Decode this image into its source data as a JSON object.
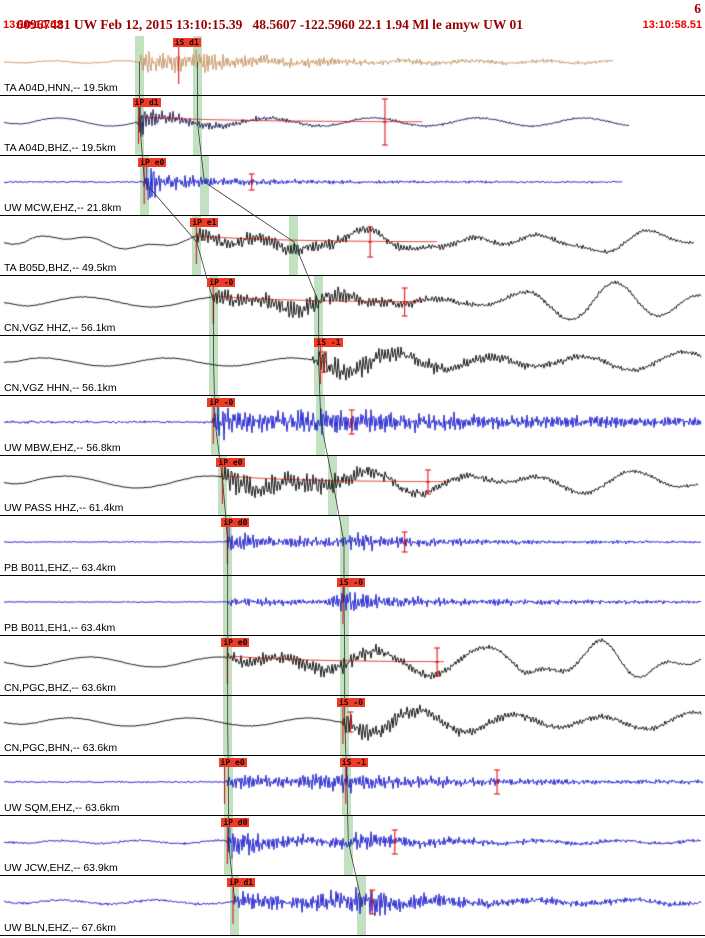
{
  "header": {
    "event_line": "60967481 UW Feb 12, 2015 13:10:15.39   48.5607 -122.5960 22.1 1.94 Ml le amyw UW 01",
    "right_count": "6",
    "start_time": "13:10:10.02",
    "end_time": "13:10:58.51"
  },
  "colors": {
    "header_text": "#990000",
    "time_text": "#ee0000",
    "phase_band": "rgba(100,180,100,0.40)",
    "pick_flag_bg": "#ee3b28",
    "pick_flag_fg": "#1a0000",
    "marker_red": "#dd0000",
    "traveltime_curve": "#333333",
    "trace_tan": "#c69463",
    "trace_navy": "#14144e",
    "trace_blue": "#1414cc",
    "trace_black": "#000000"
  },
  "traces": [
    {
      "label": "TA A04D,HNN,-- 19.5km",
      "color": "#c69463",
      "start": 0.006,
      "end": 0.87,
      "seed": 11,
      "noise": 0.5,
      "freq": 2.3,
      "lf": [
        {
          "amp": 1.2,
          "period": 70,
          "phase": 0
        }
      ],
      "segments": [
        [
          0,
          0.4
        ],
        [
          0.198,
          0.4
        ],
        [
          0.203,
          13
        ],
        [
          0.225,
          8
        ],
        [
          0.278,
          11
        ],
        [
          0.31,
          7
        ],
        [
          0.4,
          4
        ],
        [
          0.55,
          2.5
        ],
        [
          0.87,
          1.2
        ]
      ],
      "spikes": [],
      "picks": [
        {
          "label": "iS d1",
          "x": 0.245
        }
      ],
      "bands": [
        0.198,
        0.28
      ],
      "markers": [],
      "decay": null
    },
    {
      "label": "TA A04D,BHZ,-- 19.5km",
      "color": "#14144e",
      "start": 0.006,
      "end": 0.892,
      "seed": 22,
      "noise": 0.3,
      "freq": 2.2,
      "lf": [
        {
          "amp": 4,
          "period": 105,
          "phase": 1.2
        }
      ],
      "segments": [
        [
          0,
          0.2
        ],
        [
          0.194,
          0.2
        ],
        [
          0.199,
          14
        ],
        [
          0.23,
          6
        ],
        [
          0.3,
          3
        ],
        [
          0.4,
          1.6
        ],
        [
          0.6,
          1
        ],
        [
          0.89,
          0.7
        ]
      ],
      "spikes": [
        {
          "x": 0.199,
          "a": -21
        },
        {
          "x": 0.201,
          "a": 15
        }
      ],
      "picks": [
        {
          "label": "iP d1",
          "x": 0.188
        }
      ],
      "bands": [
        0.198,
        0.28
      ],
      "markers": [
        {
          "x": 0.546,
          "h": 23
        }
      ],
      "decay": {
        "from": 0.199,
        "to": 0.6,
        "h0": 5
      }
    },
    {
      "label": "UW MCW,EHZ,-- 21.8km",
      "color": "#1414cc",
      "start": 0.006,
      "end": 0.882,
      "seed": 33,
      "noise": 0.5,
      "freq": 2.4,
      "lf": [],
      "segments": [
        [
          0,
          0.5
        ],
        [
          0.203,
          0.5
        ],
        [
          0.208,
          20
        ],
        [
          0.23,
          7
        ],
        [
          0.3,
          4
        ],
        [
          0.42,
          2
        ],
        [
          0.6,
          1
        ],
        [
          0.88,
          0.7
        ]
      ],
      "spikes": [
        {
          "x": 0.208,
          "a": -23
        },
        {
          "x": 0.21,
          "a": 18
        }
      ],
      "picks": [
        {
          "label": "iP e0",
          "x": 0.196
        }
      ],
      "bands": [
        0.205,
        0.29
      ],
      "markers": [
        {
          "x": 0.357,
          "h": 8
        }
      ],
      "decay": null
    },
    {
      "label": "TA B05D,BHZ,-- 49.5km",
      "color": "#000000",
      "start": 0.006,
      "end": 0.985,
      "seed": 44,
      "noise": 0.3,
      "freq": 2.0,
      "lf": [
        {
          "amp": 5.5,
          "period": 150,
          "phase": 2.1
        },
        {
          "amp": 2.5,
          "period": 55,
          "phase": 0.4
        },
        {
          "from": 0.28,
          "amp": 5,
          "period": 95,
          "phase": 0
        }
      ],
      "segments": [
        [
          0,
          0.3
        ],
        [
          0.276,
          0.3
        ],
        [
          0.281,
          8
        ],
        [
          0.32,
          5
        ],
        [
          0.41,
          7
        ],
        [
          0.48,
          4.5
        ],
        [
          0.6,
          2.5
        ],
        [
          0.985,
          1.2
        ]
      ],
      "spikes": [],
      "picks": [
        {
          "label": "iP e1",
          "x": 0.27
        }
      ],
      "bands": [
        0.279,
        0.417
      ],
      "markers": [
        {
          "x": 0.525,
          "h": 15
        }
      ],
      "decay": {
        "from": 0.282,
        "to": 0.62,
        "h0": 6
      }
    },
    {
      "label": "CN,VGZ HHZ,-- 56.1km",
      "color": "#000000",
      "start": 0.006,
      "end": 0.995,
      "seed": 55,
      "noise": 0.3,
      "freq": 2.0,
      "lf": [
        {
          "amp": 5,
          "period": 135,
          "phase": 0.8
        },
        {
          "from": 0.55,
          "amp": 11,
          "period": 90,
          "phase": 1.5
        },
        {
          "from": 0.3,
          "amp": 4,
          "period": 70,
          "phase": 0
        }
      ],
      "segments": [
        [
          0,
          0.3
        ],
        [
          0.3,
          0.3
        ],
        [
          0.305,
          10
        ],
        [
          0.35,
          6
        ],
        [
          0.45,
          8
        ],
        [
          0.52,
          5
        ],
        [
          0.62,
          2.5
        ],
        [
          0.995,
          1
        ]
      ],
      "spikes": [],
      "picks": [
        {
          "label": "iP -0",
          "x": 0.294
        }
      ],
      "bands": [
        0.303,
        0.452
      ],
      "markers": [
        {
          "x": 0.574,
          "h": 14
        }
      ],
      "decay": {
        "from": 0.306,
        "to": 0.6,
        "h0": 6
      }
    },
    {
      "label": "CN,VGZ HHN,-- 56.1km",
      "color": "#000000",
      "start": 0.006,
      "end": 0.995,
      "seed": 66,
      "noise": 0.3,
      "freq": 2.0,
      "lf": [
        {
          "amp": 4,
          "period": 125,
          "phase": 2.6
        },
        {
          "from": 0.452,
          "amp": 8,
          "period": 100,
          "phase": 0.3
        }
      ],
      "segments": [
        [
          0,
          0.3
        ],
        [
          0.44,
          0.35
        ],
        [
          0.455,
          12
        ],
        [
          0.52,
          8
        ],
        [
          0.62,
          5
        ],
        [
          0.78,
          3
        ],
        [
          0.995,
          1.8
        ]
      ],
      "spikes": [],
      "picks": [
        {
          "label": "iS -1",
          "x": 0.446
        }
      ],
      "bands": [
        0.303,
        0.452
      ],
      "markers": [
        {
          "x": 0.46,
          "h": 10
        }
      ],
      "decay": null
    },
    {
      "label": "UW MBW,EHZ,-- 56.8km",
      "color": "#1414cc",
      "start": 0.006,
      "end": 0.995,
      "seed": 77,
      "noise": 0.8,
      "freq": 2.5,
      "lf": [],
      "segments": [
        [
          0,
          0.8
        ],
        [
          0.3,
          0.8
        ],
        [
          0.305,
          13
        ],
        [
          0.37,
          9
        ],
        [
          0.455,
          11
        ],
        [
          0.55,
          8
        ],
        [
          0.7,
          6
        ],
        [
          0.995,
          4
        ]
      ],
      "spikes": [],
      "picks": [
        {
          "label": "iP -0",
          "x": 0.294
        }
      ],
      "bands": [
        0.305,
        0.455
      ],
      "markers": [
        {
          "x": 0.499,
          "h": 12
        }
      ],
      "decay": null
    },
    {
      "label": "UW PASS HHZ,-- 61.4km",
      "color": "#000000",
      "start": 0.006,
      "end": 0.99,
      "seed": 88,
      "noise": 0.3,
      "freq": 2.0,
      "lf": [
        {
          "amp": 6,
          "period": 145,
          "phase": 1.9
        },
        {
          "from": 0.32,
          "amp": 6,
          "period": 85,
          "phase": 0
        }
      ],
      "segments": [
        [
          0,
          0.3
        ],
        [
          0.313,
          0.3
        ],
        [
          0.318,
          11
        ],
        [
          0.37,
          8
        ],
        [
          0.46,
          8
        ],
        [
          0.55,
          5
        ],
        [
          0.7,
          2.5
        ],
        [
          0.99,
          1.2
        ]
      ],
      "spikes": [],
      "picks": [
        {
          "label": "iP e0",
          "x": 0.307
        }
      ],
      "bands": [
        0.316,
        0.472
      ],
      "markers": [
        {
          "x": 0.607,
          "h": 12
        }
      ],
      "decay": {
        "from": 0.32,
        "to": 0.64,
        "h0": 6
      }
    },
    {
      "label": "PB B011,EHZ,-- 63.4km",
      "color": "#1414cc",
      "start": 0.006,
      "end": 0.995,
      "seed": 99,
      "noise": 0.4,
      "freq": 2.4,
      "lf": [],
      "segments": [
        [
          0,
          0.4
        ],
        [
          0.32,
          0.4
        ],
        [
          0.325,
          11
        ],
        [
          0.37,
          5
        ],
        [
          0.48,
          4
        ],
        [
          0.492,
          9
        ],
        [
          0.55,
          5
        ],
        [
          0.7,
          2
        ],
        [
          0.995,
          1
        ]
      ],
      "spikes": [
        {
          "x": 0.325,
          "a": -18
        }
      ],
      "picks": [
        {
          "label": "iP d0",
          "x": 0.314
        }
      ],
      "bands": [
        0.323,
        0.488
      ],
      "markers": [
        {
          "x": 0.574,
          "h": 10
        }
      ],
      "decay": null
    },
    {
      "label": "PB B011,EH1,-- 63.4km",
      "color": "#1414cc",
      "start": 0.006,
      "end": 0.995,
      "seed": 110,
      "noise": 0.35,
      "freq": 2.4,
      "lf": [],
      "segments": [
        [
          0,
          0.35
        ],
        [
          0.322,
          0.35
        ],
        [
          0.327,
          3.5
        ],
        [
          0.46,
          2.5
        ],
        [
          0.487,
          11
        ],
        [
          0.53,
          6
        ],
        [
          0.65,
          3
        ],
        [
          0.995,
          1.2
        ]
      ],
      "spikes": [
        {
          "x": 0.488,
          "a": -16
        }
      ],
      "picks": [
        {
          "label": "iS -0",
          "x": 0.478
        }
      ],
      "bands": [
        0.323,
        0.488
      ],
      "markers": [],
      "decay": null
    },
    {
      "label": "CN,PGC,BHZ,-- 63.6km",
      "color": "#000000",
      "start": 0.006,
      "end": 0.995,
      "seed": 121,
      "noise": 0.3,
      "freq": 2.0,
      "lf": [
        {
          "amp": 5,
          "period": 130,
          "phase": 0.4
        },
        {
          "from": 0.33,
          "amp": 10,
          "period": 105,
          "phase": 2.0
        },
        {
          "from": 0.72,
          "amp": 8,
          "period": 60,
          "phase": 1.0
        }
      ],
      "segments": [
        [
          0,
          0.3
        ],
        [
          0.32,
          0.3
        ],
        [
          0.325,
          8
        ],
        [
          0.37,
          5
        ],
        [
          0.49,
          7
        ],
        [
          0.56,
          4
        ],
        [
          0.68,
          2
        ],
        [
          0.995,
          1
        ]
      ],
      "spikes": [],
      "picks": [
        {
          "label": "iP e0",
          "x": 0.314
        }
      ],
      "bands": [
        0.323,
        0.489
      ],
      "markers": [
        {
          "x": 0.62,
          "h": 14
        }
      ],
      "decay": {
        "from": 0.326,
        "to": 0.63,
        "h0": 6
      }
    },
    {
      "label": "CN,PGC,BHN,-- 63.6km",
      "color": "#000000",
      "start": 0.006,
      "end": 0.995,
      "seed": 132,
      "noise": 0.3,
      "freq": 2.0,
      "lf": [
        {
          "amp": 4,
          "period": 120,
          "phase": 1.1
        },
        {
          "from": 0.49,
          "amp": 9,
          "period": 95,
          "phase": 0.2
        }
      ],
      "segments": [
        [
          0,
          0.3
        ],
        [
          0.482,
          0.35
        ],
        [
          0.49,
          10
        ],
        [
          0.56,
          6
        ],
        [
          0.7,
          3
        ],
        [
          0.995,
          1.6
        ]
      ],
      "spikes": [],
      "picks": [
        {
          "label": "iS -0",
          "x": 0.478
        }
      ],
      "bands": [
        0.323,
        0.489
      ],
      "markers": [
        {
          "x": 0.497,
          "h": 10
        }
      ],
      "decay": null
    },
    {
      "label": "UW SQM,EHZ,-- 63.6km",
      "color": "#1414cc",
      "start": 0.006,
      "end": 0.997,
      "seed": 143,
      "noise": 0.6,
      "freq": 2.4,
      "lf": [],
      "segments": [
        [
          0,
          0.5
        ],
        [
          0.32,
          0.5
        ],
        [
          0.325,
          7
        ],
        [
          0.41,
          4
        ],
        [
          0.488,
          9
        ],
        [
          0.55,
          6
        ],
        [
          0.7,
          3
        ],
        [
          0.997,
          1.5
        ]
      ],
      "spikes": [
        {
          "x": 0.492,
          "a": -17
        }
      ],
      "picks": [
        {
          "label": "iP e0",
          "x": 0.31
        },
        {
          "label": "iS -1",
          "x": 0.482
        }
      ],
      "bands": [
        0.324,
        0.492
      ],
      "markers": [
        {
          "x": 0.705,
          "h": 12
        }
      ],
      "decay": null
    },
    {
      "label": "UW JCW,EHZ,-- 63.9km",
      "color": "#1414cc",
      "start": 0.006,
      "end": 0.995,
      "seed": 154,
      "noise": 0.7,
      "freq": 2.5,
      "lf": [
        {
          "amp": 1.5,
          "period": 80,
          "phase": 0
        }
      ],
      "segments": [
        [
          0,
          0.6
        ],
        [
          0.32,
          0.6
        ],
        [
          0.326,
          15
        ],
        [
          0.37,
          7
        ],
        [
          0.46,
          4
        ],
        [
          0.5,
          8
        ],
        [
          0.58,
          4
        ],
        [
          0.72,
          2
        ],
        [
          0.995,
          1.2
        ]
      ],
      "spikes": [
        {
          "x": 0.326,
          "a": -22
        },
        {
          "x": 0.329,
          "a": 17
        }
      ],
      "picks": [
        {
          "label": "iP d0",
          "x": 0.314
        }
      ],
      "bands": [
        0.324,
        0.494
      ],
      "markers": [
        {
          "x": 0.56,
          "h": 12
        }
      ],
      "decay": null
    },
    {
      "label": "UW BLN,EHZ,-- 67.6km",
      "color": "#1414cc",
      "start": 0.006,
      "end": 0.995,
      "seed": 165,
      "noise": 0.8,
      "freq": 2.5,
      "lf": [
        {
          "amp": 2,
          "period": 95,
          "phase": 0.7
        }
      ],
      "segments": [
        [
          0,
          0.7
        ],
        [
          0.33,
          0.7
        ],
        [
          0.336,
          9
        ],
        [
          0.41,
          5
        ],
        [
          0.52,
          12
        ],
        [
          0.6,
          6
        ],
        [
          0.73,
          3
        ],
        [
          0.995,
          1.8
        ]
      ],
      "spikes": [],
      "picks": [
        {
          "label": "iP d1",
          "x": 0.322
        }
      ],
      "bands": [
        0.333,
        0.513
      ],
      "markers": [
        {
          "x": 0.528,
          "h": 12
        }
      ],
      "decay": null
    }
  ]
}
